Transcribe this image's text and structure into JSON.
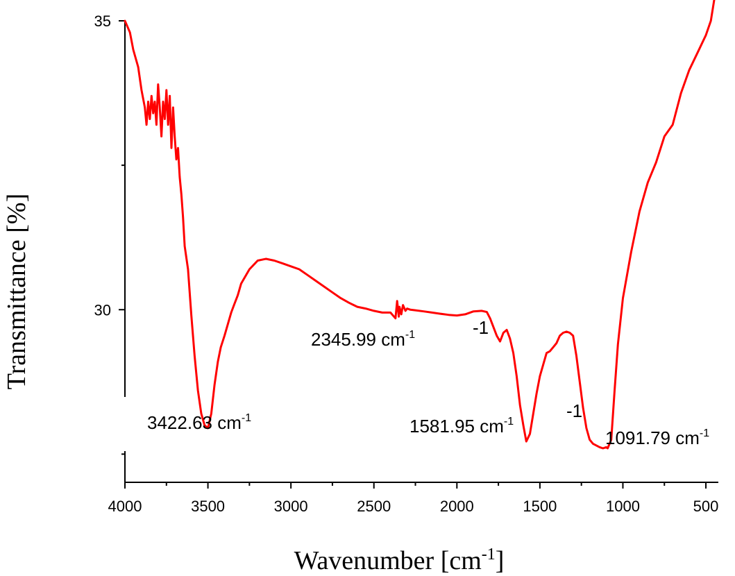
{
  "chart_data": {
    "type": "line",
    "xlabel": "Wavenumber [cm",
    "xlabel_sup": "-1",
    "xlabel_end": "]",
    "ylabel": "Transmittance [%]",
    "xlim": [
      4000,
      450
    ],
    "ylim": [
      27.0,
      35.0
    ],
    "x_ticks": [
      4000,
      3500,
      3000,
      2500,
      2000,
      1500,
      1000,
      500
    ],
    "y_ticks": [
      30,
      35
    ],
    "line_color": "#ff0000",
    "series": [
      {
        "x": [
          4000,
          3970,
          3950,
          3920,
          3900,
          3880,
          3870,
          3860,
          3850,
          3840,
          3830,
          3820,
          3810,
          3800,
          3790,
          3780,
          3770,
          3760,
          3750,
          3740,
          3730,
          3720,
          3710,
          3700,
          3690,
          3680,
          3670,
          3660,
          3650,
          3640,
          3620,
          3600,
          3580,
          3560,
          3540,
          3520,
          3500,
          3480,
          3460,
          3440,
          3422.63,
          3400,
          3380,
          3360,
          3340,
          3320,
          3300,
          3250,
          3200,
          3150,
          3100,
          3050,
          3000,
          2950,
          2900,
          2850,
          2800,
          2750,
          2700,
          2650,
          2600,
          2550,
          2500,
          2450,
          2400,
          2370,
          2360,
          2350,
          2345.99,
          2335,
          2325,
          2310,
          2300,
          2280,
          2250,
          2200,
          2150,
          2100,
          2050,
          2000,
          1950,
          1900,
          1850,
          1820,
          1800,
          1780,
          1760,
          1740,
          1720,
          1700,
          1680,
          1660,
          1640,
          1620,
          1600,
          1581.95,
          1560,
          1540,
          1520,
          1500,
          1480,
          1460,
          1440,
          1420,
          1400,
          1380,
          1360,
          1340,
          1320,
          1300,
          1280,
          1260,
          1240,
          1220,
          1200,
          1180,
          1160,
          1140,
          1120,
          1100,
          1091.79,
          1070,
          1050,
          1030,
          1000,
          950,
          900,
          850,
          800,
          750,
          700,
          650,
          600,
          550,
          500,
          470,
          450
        ],
        "y": [
          35.0,
          34.8,
          34.5,
          34.2,
          33.8,
          33.5,
          33.2,
          33.6,
          33.3,
          33.7,
          33.4,
          33.6,
          33.2,
          33.9,
          33.5,
          33.0,
          33.6,
          33.3,
          33.8,
          33.2,
          33.7,
          32.8,
          33.5,
          33.0,
          32.6,
          32.8,
          32.3,
          32.0,
          31.6,
          31.1,
          30.7,
          29.9,
          29.2,
          28.6,
          28.2,
          28.0,
          27.95,
          28.2,
          28.7,
          29.1,
          29.35,
          29.55,
          29.75,
          29.95,
          30.1,
          30.25,
          30.45,
          30.7,
          30.85,
          30.88,
          30.85,
          30.8,
          30.75,
          30.7,
          30.6,
          30.5,
          30.4,
          30.3,
          30.2,
          30.12,
          30.05,
          30.02,
          29.98,
          29.95,
          29.95,
          29.85,
          30.15,
          29.88,
          30.05,
          29.92,
          30.08,
          29.98,
          30.02,
          30.0,
          29.99,
          29.97,
          29.95,
          29.93,
          29.91,
          29.9,
          29.92,
          29.97,
          29.98,
          29.96,
          29.85,
          29.7,
          29.55,
          29.45,
          29.6,
          29.65,
          29.5,
          29.25,
          28.85,
          28.35,
          28.0,
          27.72,
          27.85,
          28.2,
          28.55,
          28.85,
          29.05,
          29.25,
          29.28,
          29.35,
          29.42,
          29.55,
          29.6,
          29.62,
          29.6,
          29.55,
          29.2,
          28.75,
          28.3,
          27.95,
          27.75,
          27.68,
          27.65,
          27.62,
          27.6,
          27.62,
          27.6,
          27.75,
          28.6,
          29.4,
          30.2,
          31.0,
          31.7,
          32.2,
          32.55,
          33.0,
          33.2,
          33.75,
          34.15,
          34.45,
          34.75,
          35.0,
          35.4
        ]
      }
    ],
    "annotations": [
      {
        "text": "3422.63 cm",
        "sup": "-1"
      },
      {
        "text": "2345.99 cm",
        "sup": "-1"
      },
      {
        "text": "1581.95 cm",
        "sup": "-1"
      },
      {
        "text": "1091.79 cm",
        "sup": "-1"
      },
      {
        "text": "",
        "sup": "-1"
      },
      {
        "text": "",
        "sup": "-1"
      }
    ]
  }
}
